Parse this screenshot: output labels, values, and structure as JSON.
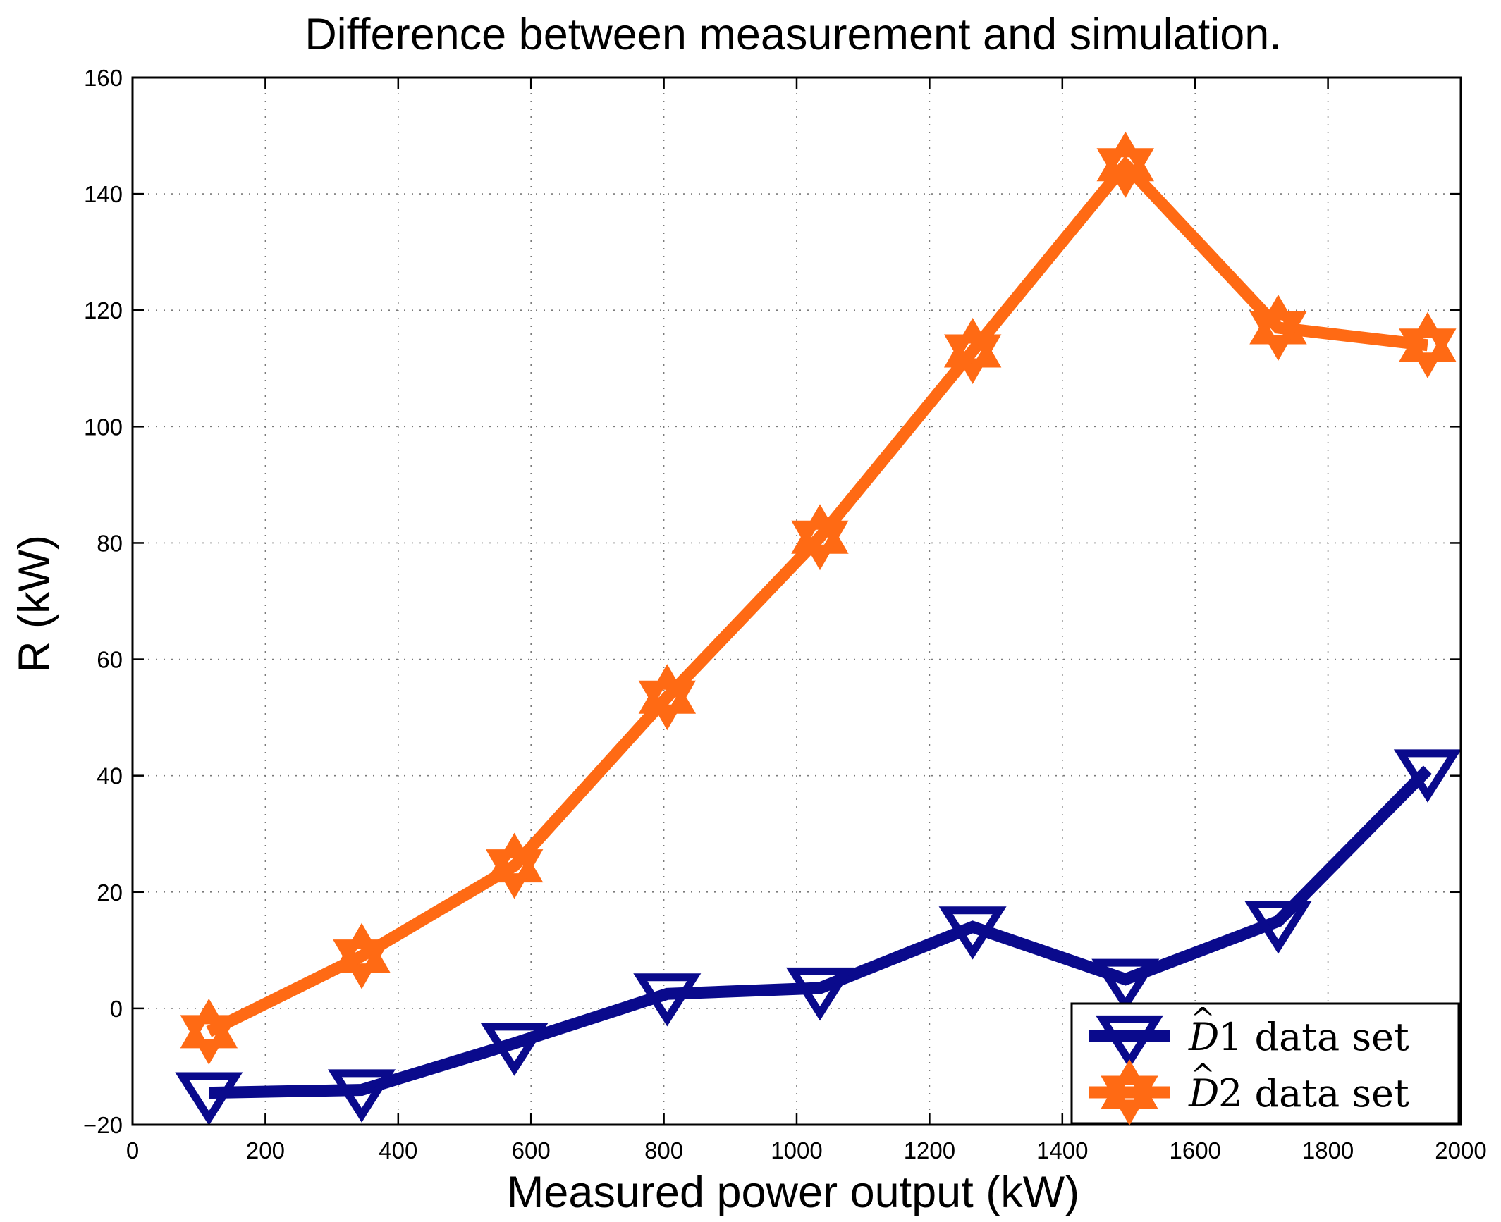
{
  "chart_data": {
    "type": "line",
    "title": "Difference between measurement and simulation.",
    "xlabel": "Measured power output (kW)",
    "ylabel": "R (kW)",
    "xlim": [
      0,
      2000
    ],
    "ylim": [
      -20,
      160
    ],
    "xticks": [
      0,
      200,
      400,
      600,
      800,
      1000,
      1200,
      1400,
      1600,
      1800,
      2000
    ],
    "yticks": [
      -20,
      0,
      20,
      40,
      60,
      80,
      100,
      120,
      140,
      160
    ],
    "xtick_labels": [
      "0",
      "200",
      "400",
      "600",
      "800",
      "1000",
      "1200",
      "1400",
      "1600",
      "1800",
      "2000"
    ],
    "ytick_labels": [
      "−20",
      "0",
      "20",
      "40",
      "60",
      "80",
      "100",
      "120",
      "140",
      "160"
    ],
    "grid": true,
    "legend_position": "bottom-right",
    "series": [
      {
        "name": "D1",
        "legend_suffix": "1 data set",
        "legend_letter": "D",
        "legend_accent": "^",
        "marker": "triangle-down",
        "color": "#0a0a8c",
        "x": [
          115,
          345,
          575,
          805,
          1035,
          1265,
          1495,
          1725,
          1950
        ],
        "y": [
          -14.5,
          -14,
          -6,
          2.5,
          3.5,
          14,
          5,
          15,
          41
        ]
      },
      {
        "name": "D2",
        "legend_suffix": "2 data set",
        "legend_letter": "D",
        "legend_accent": "^",
        "marker": "hexagram",
        "color": "#ff6a14",
        "x": [
          115,
          345,
          575,
          805,
          1035,
          1265,
          1495,
          1725,
          1950
        ],
        "y": [
          -4,
          9,
          24.5,
          53.5,
          81,
          113,
          145,
          117,
          114
        ]
      }
    ]
  }
}
